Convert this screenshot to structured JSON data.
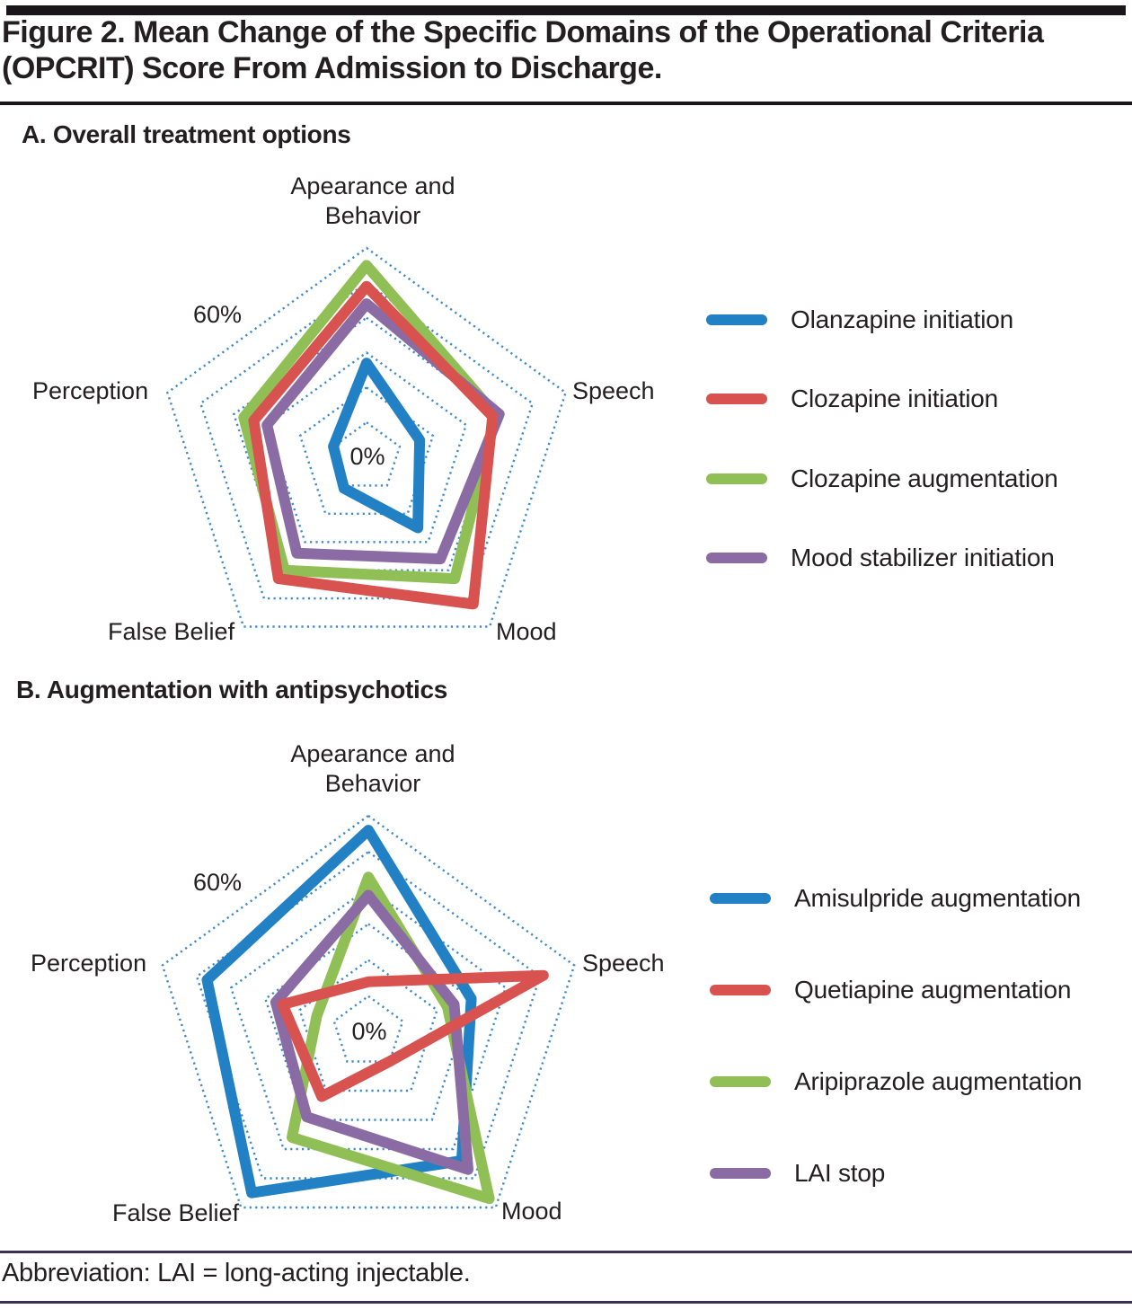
{
  "figure": {
    "title_line1": "Figure 2. Mean Change of the Specific Domains of the Operational Criteria",
    "title_line2": "(OPCRIT) Score From Admission to Discharge.",
    "footnote": "Abbreviation: LAI = long-acting injectable."
  },
  "colors": {
    "blue": "#2181c4",
    "red": "#d8534f",
    "green": "#90bf55",
    "purple": "#8a6ba3",
    "grid_blue": "#3e89cb",
    "ink": "#231f20",
    "rule_dark": "#191519",
    "footnote_rule": "#3b3153"
  },
  "panel_a": {
    "heading": "A. Overall treatment options",
    "axis_top_line1": "Apearance and",
    "axis_top_line2": "Behavior",
    "axis_right": "Speech",
    "axis_bottom_right": "Mood",
    "axis_bottom_left": "False Belief",
    "axis_left": "Perception",
    "max_label": "60%",
    "center_label": "0%"
  },
  "panel_b": {
    "heading": "B. Augmentation with antipsychotics",
    "axis_top_line1": "Apearance and",
    "axis_top_line2": "Behavior",
    "axis_right": "Speech",
    "axis_bottom_right": "Mood",
    "axis_bottom_left": "False Belief",
    "axis_left": "Perception",
    "max_label": "60%",
    "center_label": "0%"
  },
  "chart_data": [
    {
      "type": "radar",
      "title": "A. Overall treatment options",
      "categories": [
        "Apearance and Behavior",
        "Speech",
        "Mood",
        "False Belief",
        "Perception"
      ],
      "series": [
        {
          "name": "Olanzapine initiation",
          "color": "#2181c4",
          "values": [
            27,
            16,
            25,
            11,
            10
          ]
        },
        {
          "name": "Clozapine initiation",
          "color": "#d8534f",
          "values": [
            49,
            38,
            52,
            43,
            34
          ]
        },
        {
          "name": "Clozapine augmentation",
          "color": "#90bf55",
          "values": [
            55,
            39,
            43,
            40,
            37
          ]
        },
        {
          "name": "Mood stabilizer initiation",
          "color": "#8a6ba3",
          "values": [
            44,
            40,
            36,
            34,
            30
          ]
        }
      ],
      "scale": {
        "min": 0,
        "max": 60,
        "unit": "%",
        "ring_values": [
          10,
          20,
          30,
          40,
          50,
          60
        ],
        "min_label": "0%",
        "max_label": "60%"
      },
      "grid": "dotted concentric pentagons, no spokes",
      "legend_position": "right"
    },
    {
      "type": "radar",
      "title": "B. Augmentation with antipsychotics",
      "categories": [
        "Apearance and Behavior",
        "Speech",
        "Mood",
        "False Belief",
        "Perception"
      ],
      "series": [
        {
          "name": "Amisulpride augmentation",
          "color": "#2181c4",
          "values": [
            56,
            30,
            44,
            55,
            47
          ]
        },
        {
          "name": "Quetiapine augmentation",
          "color": "#d8534f",
          "values": [
            14,
            51,
            10,
            22,
            25
          ]
        },
        {
          "name": "Aripiprazole augmentation",
          "color": "#90bf55",
          "values": [
            43,
            23,
            57,
            36,
            15
          ]
        },
        {
          "name": "LAI stop",
          "color": "#8a6ba3",
          "values": [
            38,
            25,
            47,
            29,
            27
          ]
        }
      ],
      "scale": {
        "min": 0,
        "max": 60,
        "unit": "%",
        "ring_values": [
          10,
          20,
          30,
          40,
          50,
          60
        ],
        "min_label": "0%",
        "max_label": "60%"
      },
      "grid": "dotted concentric pentagons, no spokes",
      "legend_position": "right"
    }
  ]
}
